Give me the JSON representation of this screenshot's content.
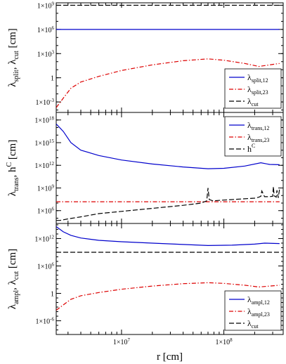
{
  "chart_data": [
    {
      "type": "line",
      "ylabel": "λ",
      "ylabel_parts": [
        {
          "t": "λ",
          "s": ""
        },
        {
          "t": "split",
          "s": "sub"
        },
        {
          "t": ", λ",
          "s": ""
        },
        {
          "t": "cut",
          "s": "sub"
        },
        {
          "t": " [cm]",
          "s": ""
        }
      ],
      "log_y": true,
      "ylim": [
        5e-05,
        2000000000.0
      ],
      "yticks": [
        {
          "v": 0.001,
          "label": "1×10",
          "exp": "-3"
        },
        {
          "v": 1,
          "label": "1",
          "exp": ""
        },
        {
          "v": 1000,
          "label": "1×10",
          "exp": "3"
        },
        {
          "v": 1000000,
          "label": "1×10",
          "exp": "6"
        },
        {
          "v": 1000000000,
          "label": "1×10",
          "exp": "9"
        }
      ],
      "legend_position": "lower-right",
      "series": [
        {
          "name": "λ",
          "name_sub": "split,12",
          "color": "#0000cc",
          "dash": "solid",
          "x": [
            2300000.0,
            3000000.0,
            5000000.0,
            10000000.0,
            30000000.0,
            70000000.0,
            150000000.0,
            250000000.0,
            350000000.0
          ],
          "y": [
            1000000.0,
            1000000.0,
            1000000.0,
            1000000.0,
            1000000.0,
            1000000.0,
            1000000.0,
            1000000.0,
            1000000.0
          ]
        },
        {
          "name": "λ",
          "name_sub": "split,23",
          "color": "#dd0000",
          "dash": "dashdot",
          "x": [
            2300000.0,
            2700000.0,
            3200000.0,
            4000000.0,
            6000000.0,
            10000000.0,
            20000000.0,
            40000000.0,
            70000000.0,
            100000000.0,
            160000000.0,
            220000000.0,
            280000000.0,
            350000000.0
          ],
          "y": [
            0.0002,
            0.003,
            0.05,
            0.3,
            1.5,
            8,
            40,
            130,
            220,
            150,
            60,
            25,
            40,
            60
          ]
        },
        {
          "name": "λ",
          "name_sub": "cut",
          "color": "#000000",
          "dash": "dashed",
          "x": [
            2300000.0,
            350000000.0
          ],
          "y": [
            1000000000.0,
            1000000000.0
          ]
        }
      ]
    },
    {
      "type": "line",
      "ylabel": "λ",
      "ylabel_parts": [
        {
          "t": "λ",
          "s": ""
        },
        {
          "t": "trans",
          "s": "sub"
        },
        {
          "t": ", h",
          "s": ""
        },
        {
          "t": "C",
          "s": "sup"
        },
        {
          "t": " [cm]",
          "s": ""
        }
      ],
      "log_y": true,
      "ylim": [
        20000,
        1e+19
      ],
      "yticks": [
        {
          "v": 1000000,
          "label": "1×10",
          "exp": "6"
        },
        {
          "v": 1000000000,
          "label": "1×10",
          "exp": "9"
        },
        {
          "v": 1000000000000,
          "label": "1×10",
          "exp": "12"
        },
        {
          "v": 1000000000000000,
          "label": "1×10",
          "exp": "15"
        },
        {
          "v": 1000000000000000000,
          "label": "1×10",
          "exp": "18"
        }
      ],
      "legend_position": "top-right",
      "series": [
        {
          "name": "λ",
          "name_sub": "trans,12",
          "color": "#0000cc",
          "dash": "solid",
          "x": [
            2300000.0,
            2700000.0,
            3200000.0,
            4000000.0,
            6000000.0,
            10000000.0,
            20000000.0,
            40000000.0,
            70000000.0,
            100000000.0,
            160000000.0,
            230000000.0,
            280000000.0,
            350000000.0
          ],
          "y": [
            3e+17,
            3e+16,
            1000000000000000.0,
            100000000000000.0,
            20000000000000.0,
            5000000000000.0,
            1500000000000.0,
            600000000000.0,
            350000000000.0,
            400000000000.0,
            800000000000.0,
            2200000000000.0,
            1300000000000.0,
            1200000000000.0
          ]
        },
        {
          "name": "λ",
          "name_sub": "trans,23",
          "color": "#dd0000",
          "dash": "dashdot",
          "x": [
            2300000.0,
            350000000.0
          ],
          "y": [
            15000000.0,
            15000000.0
          ]
        },
        {
          "name": "h",
          "name_sup": "C",
          "color": "#000000",
          "dash": "dashed",
          "x": [
            2300000.0,
            2500000.0,
            3000000.0,
            4000000.0,
            6000000.0,
            10000000.0,
            20000000.0,
            40000000.0,
            60000000.0,
            68000000.0,
            70000000.0,
            72000000.0,
            78000000.0,
            100000000.0,
            150000000.0,
            200000000.0,
            220000000.0,
            230000000.0,
            235000000.0,
            250000000.0,
            280000000.0,
            300000000.0,
            305000000.0,
            310000000.0,
            325000000.0,
            330000000.0,
            340000000.0,
            350000000.0
          ],
          "y": [
            50000.0,
            50000.0,
            80000.0,
            150000.0,
            400000.0,
            800000.0,
            2000000.0,
            5000000.0,
            10000000.0,
            20000000.0,
            1000000000.0,
            30000000.0,
            20000000.0,
            25000000.0,
            35000000.0,
            45000000.0,
            60000000.0,
            80000000.0,
            400000000.0,
            70000000.0,
            70000000.0,
            80000000.0,
            1500000000.0,
            90000000.0,
            60000000.0,
            500000000.0,
            50000000.0,
            700000000.0
          ]
        }
      ]
    },
    {
      "type": "line",
      "ylabel": "λ",
      "ylabel_parts": [
        {
          "t": "λ",
          "s": ""
        },
        {
          "t": "ampl",
          "s": "sub"
        },
        {
          "t": ", λ",
          "s": ""
        },
        {
          "t": "cut",
          "s": "sub"
        },
        {
          "t": " [cm]",
          "s": ""
        }
      ],
      "log_y": true,
      "ylim": [
        1e-09,
        2000000000000000.0
      ],
      "yticks": [
        {
          "v": 1e-06,
          "label": "1×10",
          "exp": "-6"
        },
        {
          "v": 1,
          "label": "1",
          "exp": ""
        },
        {
          "v": 1000000,
          "label": "1×10",
          "exp": "6"
        },
        {
          "v": 1000000000000,
          "label": "1×10",
          "exp": "12"
        }
      ],
      "xlabel": "r [cm]",
      "xticks": [
        {
          "v": 10000000,
          "label": "1×10",
          "exp": "7"
        },
        {
          "v": 100000000,
          "label": "1×10",
          "exp": "8"
        }
      ],
      "legend_position": "lower-right",
      "series": [
        {
          "name": "λ",
          "name_sub": "ampl,12",
          "color": "#0000cc",
          "dash": "solid",
          "x": [
            2300000.0,
            2700000.0,
            3200000.0,
            4000000.0,
            6000000.0,
            10000000.0,
            20000000.0,
            40000000.0,
            70000000.0,
            120000000.0,
            200000000.0,
            250000000.0,
            350000000.0
          ],
          "y": [
            400000000000000.0,
            30000000000000.0,
            5000000000000.0,
            1300000000000.0,
            400000000000.0,
            200000000000.0,
            100000000000.0,
            50000000000.0,
            30000000000.0,
            35000000000.0,
            60000000000.0,
            100000000000.0,
            80000000000.0
          ]
        },
        {
          "name": "λ",
          "name_sub": "ampl,23",
          "color": "#dd0000",
          "dash": "dashdot",
          "x": [
            2300000.0,
            2700000.0,
            3200000.0,
            4000000.0,
            6000000.0,
            10000000.0,
            20000000.0,
            40000000.0,
            70000000.0,
            100000000.0,
            160000000.0,
            220000000.0,
            280000000.0,
            350000000.0
          ],
          "y": [
            0.0002,
            0.003,
            0.05,
            0.3,
            1.5,
            8,
            40,
            130,
            220,
            150,
            60,
            25,
            40,
            60
          ]
        },
        {
          "name": "λ",
          "name_sub": "cut",
          "color": "#000000",
          "dash": "dashed",
          "x": [
            2300000.0,
            350000000.0
          ],
          "y": [
            1000000000.0,
            1000000000.0
          ]
        }
      ]
    }
  ],
  "x_axis": {
    "log_x": true,
    "xlim": [
      2300000.0,
      380000000.0
    ]
  }
}
